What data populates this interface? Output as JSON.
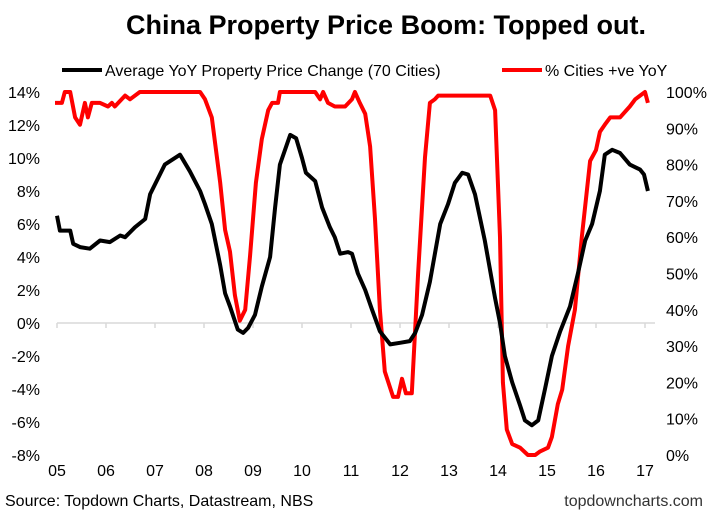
{
  "chart_data": {
    "type": "line",
    "title": "China Property Price Boom: Topped out.",
    "source": "Source: Topdown Charts, Datastream, NBS",
    "watermark": "topdowncharts.com",
    "legend_placement": "top",
    "grid": false,
    "x_ticks": [
      "05",
      "06",
      "07",
      "08",
      "09",
      "10",
      "11",
      "12",
      "13",
      "14",
      "15",
      "16",
      "17"
    ],
    "xlim": [
      2005,
      2017
    ],
    "y_left": {
      "lim": [
        -8,
        14
      ],
      "ticks": [
        "14%",
        "12%",
        "10%",
        "8%",
        "6%",
        "4%",
        "2%",
        "0%",
        "-2%",
        "-4%",
        "-6%",
        "-8%"
      ]
    },
    "y_right": {
      "lim": [
        0,
        100
      ],
      "ticks": [
        "100%",
        "90%",
        "80%",
        "70%",
        "60%",
        "50%",
        "40%",
        "30%",
        "20%",
        "10%",
        "0%"
      ]
    },
    "series": [
      {
        "name": "Average YoY Property Price Change (70 Cities)",
        "axis": "left",
        "color": "#000000",
        "points": [
          [
            2005.0,
            6.5
          ],
          [
            2005.06,
            5.6
          ],
          [
            2005.27,
            5.6
          ],
          [
            2005.33,
            4.8
          ],
          [
            2005.47,
            4.6
          ],
          [
            2005.67,
            4.5
          ],
          [
            2005.88,
            5.0
          ],
          [
            2006.08,
            4.9
          ],
          [
            2006.29,
            5.3
          ],
          [
            2006.39,
            5.2
          ],
          [
            2006.59,
            5.8
          ],
          [
            2006.8,
            6.3
          ],
          [
            2006.9,
            7.8
          ],
          [
            2007.2,
            9.6
          ],
          [
            2007.51,
            10.2
          ],
          [
            2007.71,
            9.2
          ],
          [
            2007.92,
            8.0
          ],
          [
            2008.02,
            7.2
          ],
          [
            2008.16,
            6.0
          ],
          [
            2008.33,
            3.5
          ],
          [
            2008.43,
            1.8
          ],
          [
            2008.53,
            1.0
          ],
          [
            2008.69,
            -0.4
          ],
          [
            2008.8,
            -0.6
          ],
          [
            2008.9,
            -0.3
          ],
          [
            2009.04,
            0.5
          ],
          [
            2009.18,
            2.2
          ],
          [
            2009.35,
            4.0
          ],
          [
            2009.45,
            7.0
          ],
          [
            2009.55,
            9.6
          ],
          [
            2009.76,
            11.4
          ],
          [
            2009.88,
            11.2
          ],
          [
            2010.0,
            10.0
          ],
          [
            2010.08,
            9.1
          ],
          [
            2010.27,
            8.6
          ],
          [
            2010.41,
            7.0
          ],
          [
            2010.57,
            5.8
          ],
          [
            2010.67,
            5.2
          ],
          [
            2010.78,
            4.2
          ],
          [
            2010.94,
            4.3
          ],
          [
            2011.02,
            4.2
          ],
          [
            2011.14,
            3.0
          ],
          [
            2011.29,
            2.0
          ],
          [
            2011.43,
            0.8
          ],
          [
            2011.59,
            -0.5
          ],
          [
            2011.8,
            -1.3
          ],
          [
            2012.0,
            -1.2
          ],
          [
            2012.2,
            -1.1
          ],
          [
            2012.31,
            -0.6
          ],
          [
            2012.45,
            0.5
          ],
          [
            2012.61,
            2.5
          ],
          [
            2012.82,
            6.0
          ],
          [
            2012.98,
            7.2
          ],
          [
            2013.12,
            8.5
          ],
          [
            2013.27,
            9.1
          ],
          [
            2013.39,
            9.0
          ],
          [
            2013.53,
            7.8
          ],
          [
            2013.73,
            5.0
          ],
          [
            2013.94,
            1.5
          ],
          [
            2014.04,
            0.0
          ],
          [
            2014.14,
            -2.0
          ],
          [
            2014.29,
            -3.6
          ],
          [
            2014.45,
            -5.0
          ],
          [
            2014.55,
            -5.9
          ],
          [
            2014.69,
            -6.2
          ],
          [
            2014.82,
            -5.9
          ],
          [
            2014.96,
            -4.0
          ],
          [
            2015.1,
            -2.0
          ],
          [
            2015.27,
            -0.5
          ],
          [
            2015.47,
            1.0
          ],
          [
            2015.63,
            3.0
          ],
          [
            2015.78,
            5.0
          ],
          [
            2015.92,
            6.0
          ],
          [
            2016.08,
            8.0
          ],
          [
            2016.18,
            10.2
          ],
          [
            2016.33,
            10.5
          ],
          [
            2016.49,
            10.3
          ],
          [
            2016.69,
            9.6
          ],
          [
            2016.9,
            9.3
          ],
          [
            2016.98,
            9.0
          ],
          [
            2017.06,
            8.0
          ]
        ]
      },
      {
        "name": "% Cities +ve YoY",
        "axis": "right",
        "color": "#ff0000",
        "points": [
          [
            2004.96,
            97
          ],
          [
            2005.1,
            97
          ],
          [
            2005.16,
            100
          ],
          [
            2005.27,
            100
          ],
          [
            2005.37,
            93
          ],
          [
            2005.47,
            91
          ],
          [
            2005.57,
            97
          ],
          [
            2005.63,
            93
          ],
          [
            2005.71,
            97
          ],
          [
            2005.88,
            97
          ],
          [
            2006.04,
            96
          ],
          [
            2006.12,
            97
          ],
          [
            2006.18,
            96
          ],
          [
            2006.39,
            99
          ],
          [
            2006.49,
            98
          ],
          [
            2006.69,
            100
          ],
          [
            2007.92,
            100
          ],
          [
            2008.02,
            98
          ],
          [
            2008.16,
            93
          ],
          [
            2008.33,
            75
          ],
          [
            2008.43,
            62
          ],
          [
            2008.53,
            56
          ],
          [
            2008.63,
            44
          ],
          [
            2008.73,
            37
          ],
          [
            2008.84,
            40
          ],
          [
            2008.94,
            55
          ],
          [
            2009.06,
            75
          ],
          [
            2009.18,
            87
          ],
          [
            2009.31,
            95
          ],
          [
            2009.39,
            97
          ],
          [
            2009.51,
            97
          ],
          [
            2009.55,
            100
          ],
          [
            2010.27,
            100
          ],
          [
            2010.37,
            98
          ],
          [
            2010.43,
            100
          ],
          [
            2010.53,
            97
          ],
          [
            2010.67,
            96
          ],
          [
            2010.88,
            96
          ],
          [
            2011.02,
            98
          ],
          [
            2011.08,
            100
          ],
          [
            2011.18,
            97
          ],
          [
            2011.29,
            94
          ],
          [
            2011.39,
            85
          ],
          [
            2011.49,
            65
          ],
          [
            2011.59,
            40
          ],
          [
            2011.69,
            23
          ],
          [
            2011.86,
            16
          ],
          [
            2011.96,
            16
          ],
          [
            2012.04,
            21
          ],
          [
            2012.12,
            17
          ],
          [
            2012.24,
            17
          ],
          [
            2012.37,
            50
          ],
          [
            2012.51,
            82
          ],
          [
            2012.61,
            97
          ],
          [
            2012.71,
            98
          ],
          [
            2012.78,
            99
          ],
          [
            2013.84,
            99
          ],
          [
            2013.94,
            95
          ],
          [
            2014.04,
            60
          ],
          [
            2014.1,
            20
          ],
          [
            2014.18,
            7
          ],
          [
            2014.29,
            3
          ],
          [
            2014.45,
            2
          ],
          [
            2014.61,
            0
          ],
          [
            2014.76,
            0
          ],
          [
            2014.86,
            1
          ],
          [
            2015.02,
            2
          ],
          [
            2015.1,
            5
          ],
          [
            2015.22,
            14
          ],
          [
            2015.31,
            18
          ],
          [
            2015.43,
            30
          ],
          [
            2015.57,
            40
          ],
          [
            2015.71,
            60
          ],
          [
            2015.88,
            81
          ],
          [
            2016.0,
            84
          ],
          [
            2016.08,
            89
          ],
          [
            2016.18,
            91
          ],
          [
            2016.29,
            93
          ],
          [
            2016.49,
            93
          ],
          [
            2016.69,
            96
          ],
          [
            2016.8,
            98
          ],
          [
            2016.9,
            99
          ],
          [
            2017.0,
            100
          ],
          [
            2017.06,
            97
          ]
        ]
      }
    ]
  }
}
